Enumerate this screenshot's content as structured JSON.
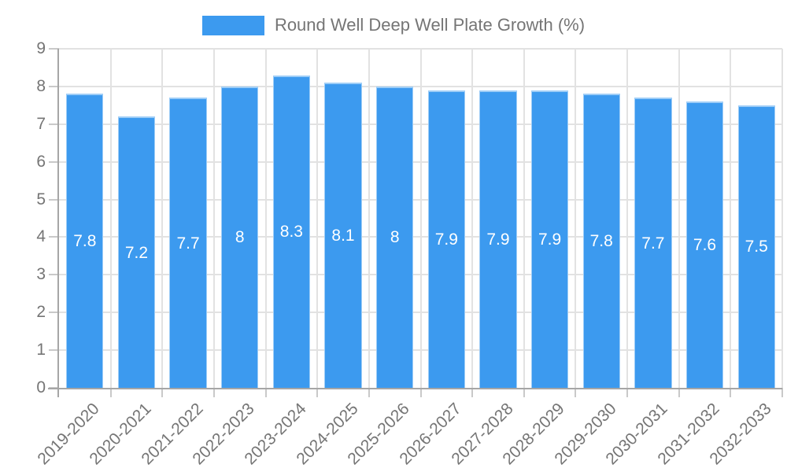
{
  "legend": {
    "label": "Round Well Deep Well Plate Growth (%)"
  },
  "chart_data": {
    "type": "bar",
    "title": "Round Well Deep Well Plate Growth (%)",
    "series_name": "Round Well Deep Well Plate Growth (%)",
    "categories": [
      "2019-2020",
      "2020-2021",
      "2021-2022",
      "2022-2023",
      "2023-2024",
      "2024-2025",
      "2025-2026",
      "2026-2027",
      "2027-2028",
      "2028-2029",
      "2029-2030",
      "2030-2031",
      "2031-2032",
      "2032-2033"
    ],
    "values": [
      7.8,
      7.2,
      7.7,
      8,
      8.3,
      8.1,
      8,
      7.9,
      7.9,
      7.9,
      7.8,
      7.7,
      7.6,
      7.5
    ],
    "value_labels": [
      "7.8",
      "7.2",
      "7.7",
      "8",
      "8.3",
      "8.1",
      "8",
      "7.9",
      "7.9",
      "7.9",
      "7.8",
      "7.7",
      "7.6",
      "7.5"
    ],
    "xlabel": "",
    "ylabel": "",
    "ylim": [
      0,
      9
    ],
    "yticks": [
      0,
      1,
      2,
      3,
      4,
      5,
      6,
      7,
      8,
      9
    ],
    "grid": true,
    "legend_position": "top-center",
    "colors": {
      "bar": "#3C9AEF",
      "bar_border": "rgba(255,255,255,0.5)",
      "grid": "#E2E2E2",
      "axis": "#A6A6A6",
      "tick": "#C9C9C9",
      "label": "#757575",
      "value_label": "#FFFFFF"
    }
  }
}
